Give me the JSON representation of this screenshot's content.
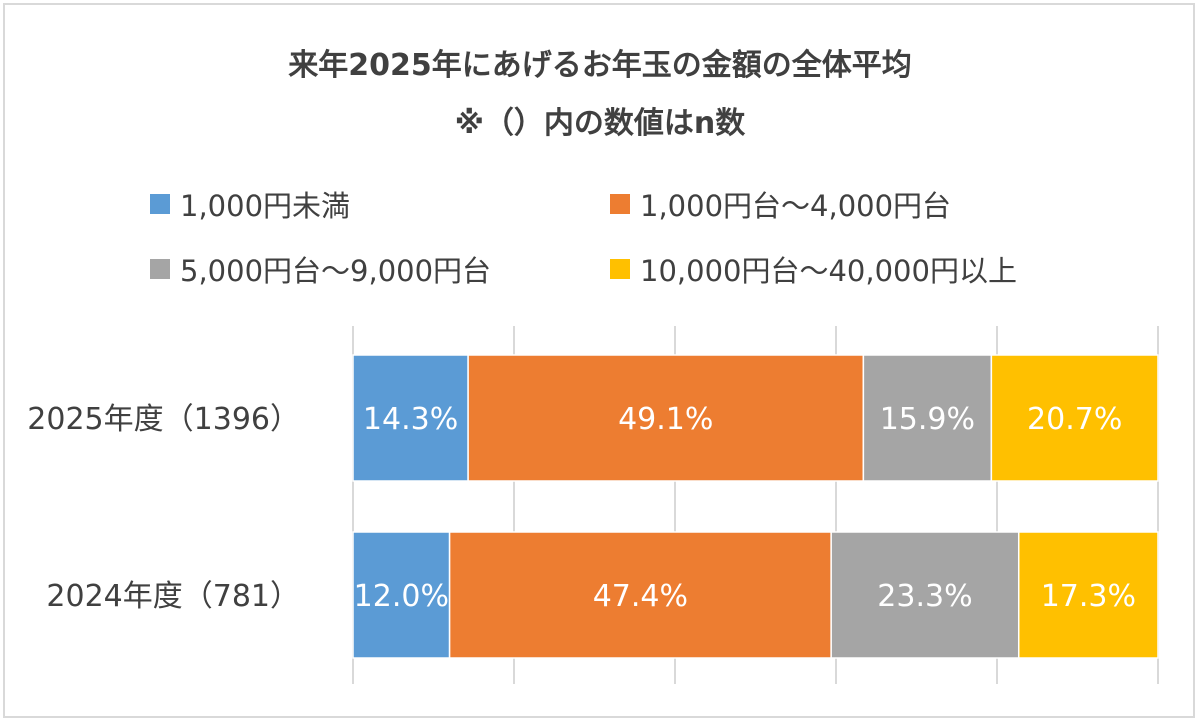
{
  "colors": {
    "under_1000": "#5b9bd5",
    "range_1000_4000": "#ed7d31",
    "range_5000_9000": "#a5a5a5",
    "range_10000_40000": "#ffc000",
    "grid": "#d9d9d9",
    "label_text": "#ffffff",
    "axis_text": "#404040"
  },
  "chart_data": {
    "type": "bar",
    "orientation": "horizontal",
    "stacked": true,
    "title": "来年2025年にあげるお年玉の金額の全体平均",
    "subtitle": "※（）内の数値はn数",
    "xlim": [
      0,
      100
    ],
    "grid": true,
    "legend_position": "top",
    "categories": [
      "2025年度（1396）",
      "2024年度（781）"
    ],
    "series": [
      {
        "name": "1,000円未満",
        "values": [
          14.3,
          12.0
        ],
        "labels": [
          "14.3%",
          "12.0%"
        ]
      },
      {
        "name": "1,000円台～4,000円台",
        "values": [
          49.1,
          47.4
        ],
        "labels": [
          "49.1%",
          "47.4%"
        ]
      },
      {
        "name": "5,000円台～9,000円台",
        "values": [
          15.9,
          23.3
        ],
        "labels": [
          "15.9%",
          "23.3%"
        ]
      },
      {
        "name": "10,000円台～40,000円以上",
        "values": [
          20.7,
          17.3
        ],
        "labels": [
          "20.7%",
          "17.3%"
        ]
      }
    ]
  }
}
